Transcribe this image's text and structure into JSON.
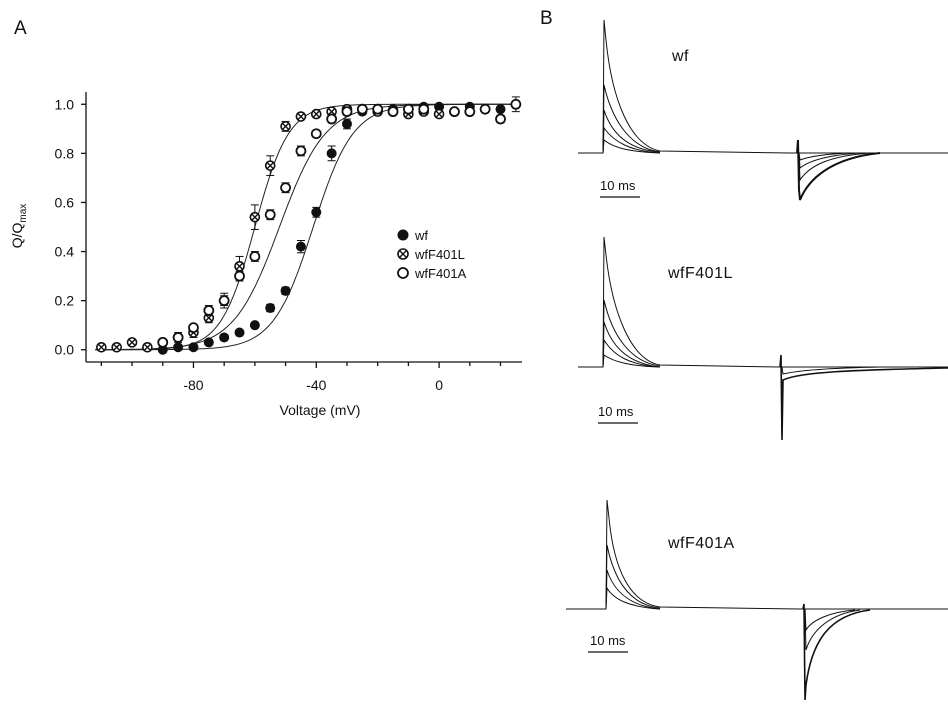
{
  "panels": {
    "a_label": "A",
    "b_label": "B"
  },
  "chart_data": [
    {
      "type": "scatter",
      "xlabel": "Voltage (mV)",
      "ylabel": "Q/Q",
      "ylabel_subscript": "max",
      "xlim": [
        -115,
        27
      ],
      "ylim": [
        -0.05,
        1.05
      ],
      "xticks": [
        -80,
        -40,
        0
      ],
      "xtick_labels": [
        "-80",
        "-40",
        "0"
      ],
      "yticks": [
        0.0,
        0.2,
        0.4,
        0.6,
        0.8,
        1.0
      ],
      "ytick_labels": [
        "0.0",
        "0.2",
        "0.4",
        "0.6",
        "0.8",
        "1.0"
      ],
      "legend_position": "right",
      "grid": false,
      "series": [
        {
          "name": "wf",
          "marker": "filled-circle",
          "fit": {
            "v_half": -41,
            "k": 6.5
          },
          "points": [
            {
              "x": -90,
              "y": 0.0,
              "err": 0.01
            },
            {
              "x": -85,
              "y": 0.01,
              "err": 0.01
            },
            {
              "x": -80,
              "y": 0.01,
              "err": 0.01
            },
            {
              "x": -75,
              "y": 0.03,
              "err": 0.01
            },
            {
              "x": -70,
              "y": 0.05,
              "err": 0.01
            },
            {
              "x": -65,
              "y": 0.07,
              "err": 0.01
            },
            {
              "x": -60,
              "y": 0.1,
              "err": 0.01
            },
            {
              "x": -55,
              "y": 0.17,
              "err": 0.015
            },
            {
              "x": -50,
              "y": 0.24,
              "err": 0.015
            },
            {
              "x": -45,
              "y": 0.42,
              "err": 0.025
            },
            {
              "x": -40,
              "y": 0.56,
              "err": 0.02
            },
            {
              "x": -35,
              "y": 0.8,
              "err": 0.03
            },
            {
              "x": -30,
              "y": 0.92,
              "err": 0.02
            },
            {
              "x": -25,
              "y": 0.97,
              "err": 0.01
            },
            {
              "x": -20,
              "y": 0.97,
              "err": 0.01
            },
            {
              "x": -15,
              "y": 0.98,
              "err": 0.01
            },
            {
              "x": -10,
              "y": 0.98,
              "err": 0.01
            },
            {
              "x": -5,
              "y": 0.99,
              "err": 0.01
            },
            {
              "x": 0,
              "y": 0.99,
              "err": 0.01
            },
            {
              "x": 10,
              "y": 0.99,
              "err": 0.01
            },
            {
              "x": 20,
              "y": 0.98,
              "err": 0.01
            }
          ]
        },
        {
          "name": "wfF401L",
          "marker": "crossed-circle",
          "fit": {
            "v_half": -60,
            "k": 5.5
          },
          "points": [
            {
              "x": -110,
              "y": 0.01,
              "err": 0.01
            },
            {
              "x": -105,
              "y": 0.01,
              "err": 0.01
            },
            {
              "x": -100,
              "y": 0.03,
              "err": 0.01
            },
            {
              "x": -95,
              "y": 0.01,
              "err": 0.01
            },
            {
              "x": -90,
              "y": 0.03,
              "err": 0.01
            },
            {
              "x": -85,
              "y": 0.05,
              "err": 0.02
            },
            {
              "x": -80,
              "y": 0.07,
              "err": 0.02
            },
            {
              "x": -75,
              "y": 0.13,
              "err": 0.02
            },
            {
              "x": -70,
              "y": 0.2,
              "err": 0.03
            },
            {
              "x": -65,
              "y": 0.34,
              "err": 0.04
            },
            {
              "x": -60,
              "y": 0.54,
              "err": 0.05
            },
            {
              "x": -55,
              "y": 0.75,
              "err": 0.04
            },
            {
              "x": -50,
              "y": 0.91,
              "err": 0.02
            },
            {
              "x": -45,
              "y": 0.95,
              "err": 0.01
            },
            {
              "x": -40,
              "y": 0.96,
              "err": 0.01
            },
            {
              "x": -35,
              "y": 0.97,
              "err": 0.01
            },
            {
              "x": -30,
              "y": 0.98,
              "err": 0.01
            },
            {
              "x": -25,
              "y": 0.98,
              "err": 0.01
            },
            {
              "x": -20,
              "y": 0.97,
              "err": 0.01
            },
            {
              "x": -15,
              "y": 0.97,
              "err": 0.01
            },
            {
              "x": -10,
              "y": 0.96,
              "err": 0.01
            },
            {
              "x": -5,
              "y": 0.97,
              "err": 0.01
            },
            {
              "x": 0,
              "y": 0.96,
              "err": 0.01
            },
            {
              "x": 5,
              "y": 0.97,
              "err": 0.01
            },
            {
              "x": 10,
              "y": 0.97,
              "err": 0.01
            },
            {
              "x": 15,
              "y": 0.98,
              "err": 0.01
            }
          ]
        },
        {
          "name": "wfF401A",
          "marker": "open-circle",
          "fit": {
            "v_half": -52,
            "k": 7.5
          },
          "points": [
            {
              "x": -90,
              "y": 0.03,
              "err": 0.01
            },
            {
              "x": -85,
              "y": 0.05,
              "err": 0.01
            },
            {
              "x": -80,
              "y": 0.09,
              "err": 0.01
            },
            {
              "x": -75,
              "y": 0.16,
              "err": 0.02
            },
            {
              "x": -70,
              "y": 0.2,
              "err": 0.02
            },
            {
              "x": -65,
              "y": 0.3,
              "err": 0.02
            },
            {
              "x": -60,
              "y": 0.38,
              "err": 0.02
            },
            {
              "x": -55,
              "y": 0.55,
              "err": 0.02
            },
            {
              "x": -50,
              "y": 0.66,
              "err": 0.02
            },
            {
              "x": -45,
              "y": 0.81,
              "err": 0.02
            },
            {
              "x": -40,
              "y": 0.88,
              "err": 0.01
            },
            {
              "x": -35,
              "y": 0.94,
              "err": 0.01
            },
            {
              "x": -30,
              "y": 0.97,
              "err": 0.01
            },
            {
              "x": -25,
              "y": 0.98,
              "err": 0.01
            },
            {
              "x": -20,
              "y": 0.98,
              "err": 0.01
            },
            {
              "x": -15,
              "y": 0.97,
              "err": 0.01
            },
            {
              "x": -10,
              "y": 0.98,
              "err": 0.01
            },
            {
              "x": -5,
              "y": 0.98,
              "err": 0.01
            },
            {
              "x": 5,
              "y": 0.97,
              "err": 0.01
            },
            {
              "x": 10,
              "y": 0.97,
              "err": 0.01
            },
            {
              "x": 15,
              "y": 0.98,
              "err": 0.01
            },
            {
              "x": 20,
              "y": 0.94,
              "err": 0.015
            },
            {
              "x": 25,
              "y": 1.0,
              "err": 0.03
            }
          ]
        }
      ]
    }
  ],
  "traces": [
    {
      "label": "wf",
      "scale_label": "10 ms"
    },
    {
      "label": "wfF401L",
      "scale_label": "10 ms"
    },
    {
      "label": "wfF401A",
      "scale_label": "10 ms"
    }
  ]
}
